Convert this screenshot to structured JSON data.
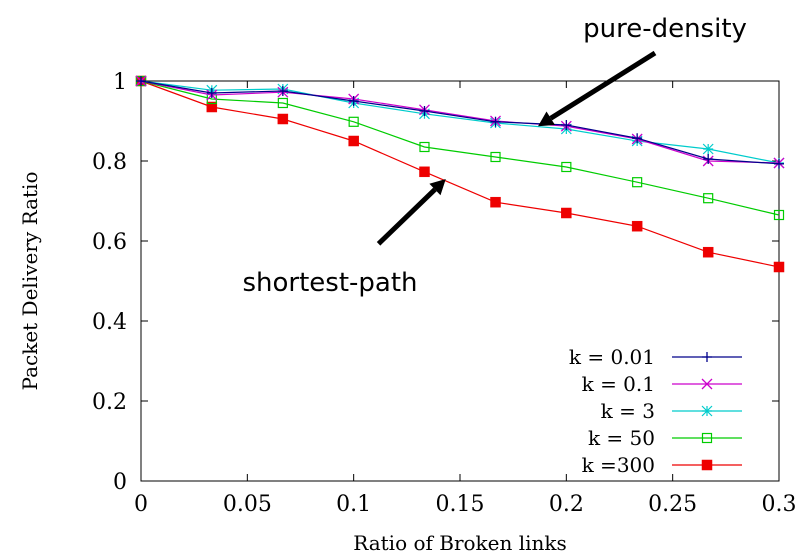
{
  "chart_data": {
    "type": "line",
    "xlabel": "Ratio of Broken links",
    "ylabel": "Packet Delivery Ratio",
    "xlim": [
      0,
      0.3
    ],
    "ylim": [
      0,
      1
    ],
    "x_ticks": [
      0,
      0.05,
      0.1,
      0.15,
      0.2,
      0.25,
      0.3
    ],
    "x_tick_labels": [
      "0",
      "0.05",
      "0.1",
      "0.15",
      "0.2",
      "0.25",
      "0.3"
    ],
    "y_ticks": [
      0,
      0.2,
      0.4,
      0.6,
      0.8,
      1
    ],
    "y_tick_labels": [
      "0",
      "0.2",
      "0.4",
      "0.6",
      "0.8",
      "1"
    ],
    "grid": false,
    "legend_position": "bottom-right",
    "x": [
      0,
      0.0333,
      0.0667,
      0.1,
      0.1333,
      0.1667,
      0.2,
      0.2333,
      0.2667,
      0.3
    ],
    "series": [
      {
        "name": "k = 0.01",
        "color": "#00008b",
        "marker": "plus",
        "values": [
          1.0,
          0.97,
          0.975,
          0.95,
          0.925,
          0.898,
          0.89,
          0.857,
          0.805,
          0.793
        ]
      },
      {
        "name": "k = 0.1",
        "color": "#cc00cc",
        "marker": "cross",
        "values": [
          1.0,
          0.965,
          0.972,
          0.955,
          0.928,
          0.9,
          0.887,
          0.855,
          0.8,
          0.795
        ]
      },
      {
        "name": "k = 3",
        "color": "#00cccc",
        "marker": "star",
        "values": [
          1.0,
          0.977,
          0.98,
          0.945,
          0.918,
          0.895,
          0.88,
          0.85,
          0.83,
          0.795
        ]
      },
      {
        "name": "k = 50",
        "color": "#00cc00",
        "marker": "square-open",
        "values": [
          1.0,
          0.955,
          0.945,
          0.898,
          0.835,
          0.81,
          0.785,
          0.747,
          0.707,
          0.665
        ]
      },
      {
        "name": "k =300",
        "color": "#ee0000",
        "marker": "square-filled",
        "values": [
          1.0,
          0.935,
          0.905,
          0.85,
          0.773,
          0.697,
          0.67,
          0.637,
          0.572,
          0.535
        ]
      }
    ],
    "annotations": [
      {
        "text": "pure-density",
        "arrow_from": [
          0.2417,
          1.07
        ],
        "arrow_to": [
          0.1867,
          0.887
        ]
      },
      {
        "text": "shortest-path",
        "arrow_from": [
          0.1117,
          0.593
        ],
        "arrow_to": [
          0.1433,
          0.755
        ]
      }
    ]
  }
}
